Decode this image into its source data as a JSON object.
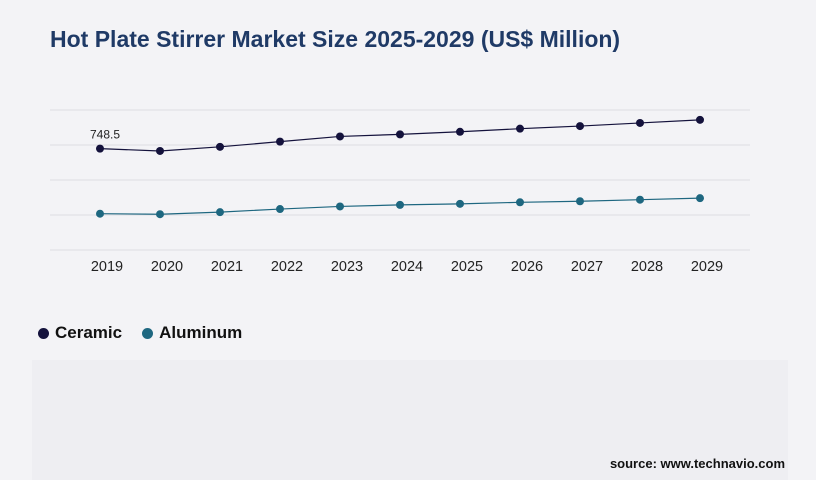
{
  "chart_data": {
    "type": "line",
    "title": "Hot Plate Stirrer Market Size 2025-2029 (US$ Million)",
    "x": [
      "2019",
      "2020",
      "2021",
      "2022",
      "2023",
      "2024",
      "2025",
      "2026",
      "2027",
      "2028",
      "2029"
    ],
    "series": [
      {
        "name": "Ceramic",
        "color": "#14123c",
        "values": [
          748.5,
          744,
          752,
          762,
          772,
          776,
          781,
          787,
          792,
          798,
          804
        ],
        "label_first": "748.5"
      },
      {
        "name": "Aluminum",
        "color": "#1e6780",
        "values": [
          623,
          622,
          626,
          632,
          637,
          640,
          642,
          645,
          647,
          650,
          653
        ]
      }
    ],
    "ylim": [
      553,
      823
    ],
    "grid": true,
    "legend_position": "bottom-left"
  },
  "source": "source: www.technavio.com"
}
